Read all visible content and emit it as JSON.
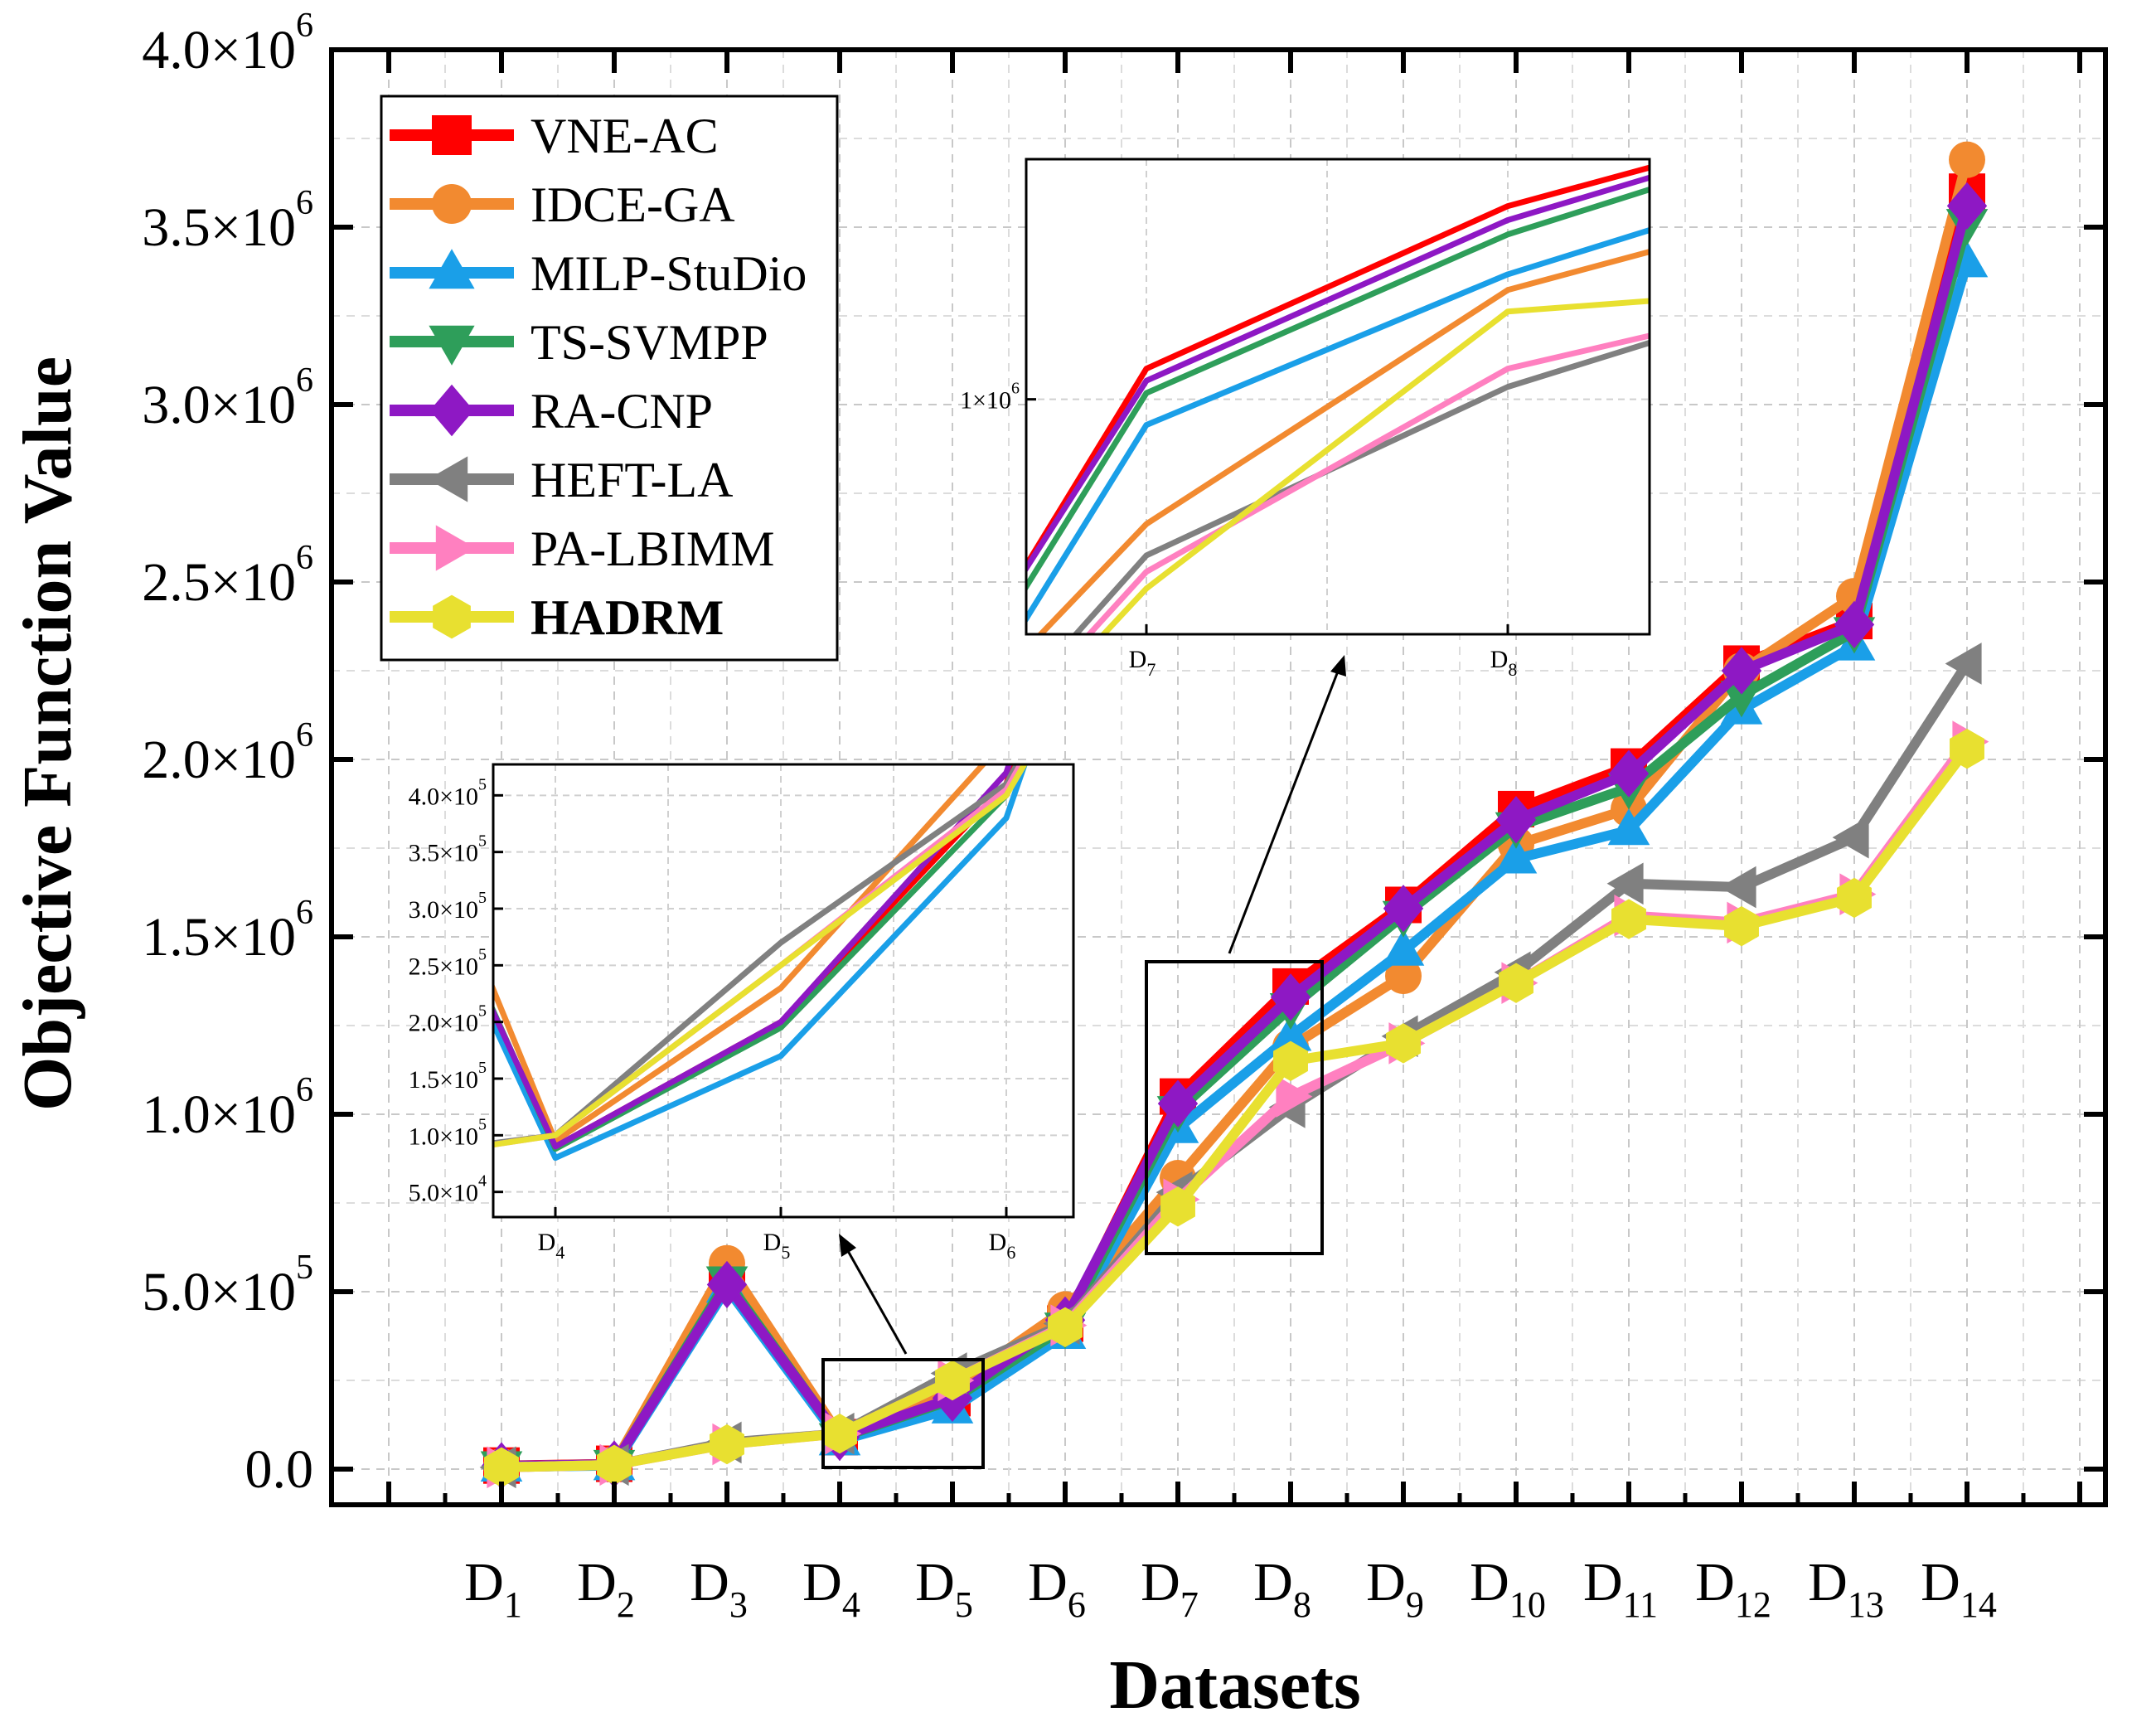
{
  "chart_data": {
    "type": "line",
    "title": "",
    "xlabel": "Datasets",
    "ylabel": "Objective Function Value",
    "categories": [
      "D1",
      "D2",
      "D3",
      "D4",
      "D5",
      "D6",
      "D7",
      "D8",
      "D9",
      "D10",
      "D11",
      "D12",
      "D13",
      "D14"
    ],
    "ylim": [
      0,
      4000000
    ],
    "grid": true,
    "legend_position": "top-left",
    "y_ticks": [
      {
        "value": 0,
        "mant": "0.0",
        "exp": ""
      },
      {
        "value": 500000,
        "mant": "5.0×10",
        "exp": "5"
      },
      {
        "value": 1000000,
        "mant": "1.0×10",
        "exp": "6"
      },
      {
        "value": 1500000,
        "mant": "1.5×10",
        "exp": "6"
      },
      {
        "value": 2000000,
        "mant": "2.0×10",
        "exp": "6"
      },
      {
        "value": 2500000,
        "mant": "2.5×10",
        "exp": "6"
      },
      {
        "value": 3000000,
        "mant": "3.0×10",
        "exp": "6"
      },
      {
        "value": 3500000,
        "mant": "3.5×10",
        "exp": "6"
      },
      {
        "value": 4000000,
        "mant": "4.0×10",
        "exp": "6"
      }
    ],
    "series": [
      {
        "name": "VNE-AC",
        "color": "#ff0000",
        "marker": "square",
        "bold": false,
        "values": [
          10000,
          15000,
          520000,
          90000,
          200000,
          410000,
          1050000,
          1360000,
          1590000,
          1860000,
          1980000,
          2270000,
          2390000,
          3600000
        ]
      },
      {
        "name": "IDCE-GA",
        "color": "#f28a30",
        "marker": "circle",
        "bold": false,
        "values": [
          8000,
          15000,
          580000,
          95000,
          230000,
          450000,
          820000,
          1190000,
          1390000,
          1760000,
          1860000,
          2250000,
          2460000,
          3690000
        ]
      },
      {
        "name": "MILP-StuDio",
        "color": "#1a9fe8",
        "marker": "triangle-up",
        "bold": false,
        "values": [
          6000,
          10000,
          510000,
          80000,
          170000,
          380000,
          960000,
          1220000,
          1460000,
          1720000,
          1800000,
          2140000,
          2320000,
          3400000
        ]
      },
      {
        "name": "TS-SVMPP",
        "color": "#2e9e5a",
        "marker": "triangle-down",
        "bold": false,
        "values": [
          9000,
          13000,
          530000,
          88000,
          195000,
          400000,
          1010000,
          1300000,
          1560000,
          1810000,
          1920000,
          2180000,
          2360000,
          3510000
        ]
      },
      {
        "name": "RA-CNP",
        "color": "#8e18c4",
        "marker": "diamond",
        "bold": false,
        "values": [
          9000,
          14000,
          520000,
          90000,
          200000,
          420000,
          1030000,
          1330000,
          1580000,
          1830000,
          1960000,
          2250000,
          2380000,
          3560000
        ]
      },
      {
        "name": "HEFT-LA",
        "color": "#808080",
        "marker": "triangle-left",
        "bold": false,
        "values": [
          5000,
          12000,
          75000,
          100000,
          270000,
          410000,
          780000,
          1020000,
          1220000,
          1400000,
          1650000,
          1640000,
          1780000,
          2270000
        ]
      },
      {
        "name": "PA-LBIMM",
        "color": "#ff80c0",
        "marker": "triangle-right",
        "bold": false,
        "values": [
          5000,
          12000,
          70000,
          100000,
          250000,
          405000,
          760000,
          1050000,
          1200000,
          1370000,
          1560000,
          1540000,
          1620000,
          2050000
        ]
      },
      {
        "name": "HADRM",
        "color": "#e8e030",
        "marker": "hexagon",
        "bold": true,
        "values": [
          5000,
          12000,
          70000,
          100000,
          250000,
          400000,
          740000,
          1150000,
          1200000,
          1370000,
          1550000,
          1530000,
          1610000,
          2030000
        ]
      }
    ],
    "inset_1": {
      "categories": [
        "D4",
        "D5",
        "D6"
      ],
      "ylim": [
        30000,
        420000
      ],
      "y_ticks": [
        {
          "value": 50000,
          "mant": "5.0×10",
          "exp": "4"
        },
        {
          "value": 100000,
          "mant": "1.0×10",
          "exp": "5"
        },
        {
          "value": 150000,
          "mant": "1.5×10",
          "exp": "5"
        },
        {
          "value": 200000,
          "mant": "2.0×10",
          "exp": "5"
        },
        {
          "value": 250000,
          "mant": "2.5×10",
          "exp": "5"
        },
        {
          "value": 300000,
          "mant": "3.0×10",
          "exp": "5"
        },
        {
          "value": 350000,
          "mant": "3.5×10",
          "exp": "5"
        },
        {
          "value": 400000,
          "mant": "4.0×10",
          "exp": "5"
        }
      ]
    },
    "inset_2": {
      "categories": [
        "D7",
        "D8"
      ],
      "scale": "log",
      "ylim": [
        700000,
        1450000
      ],
      "y_ticks": [
        {
          "value": 1000000,
          "mant": "1×10",
          "exp": "6"
        }
      ]
    }
  }
}
